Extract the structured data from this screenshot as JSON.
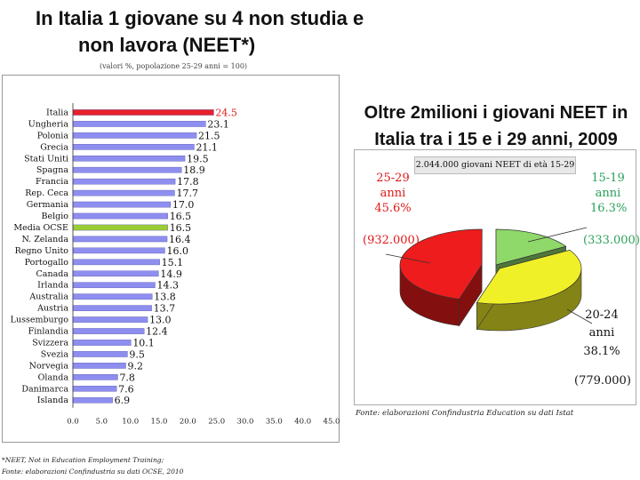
{
  "left_title_line1": "In Italia 1 giovane su 4 non studia e",
  "left_title_line2": "non lavora (NEET*)",
  "left_subtitle": "(valori %, popolazione 25-29 anni = 100)",
  "footnote_1": "*NEET, Not in Education Employment Training;",
  "footnote_2": "Fonte: elaborazioni Confindustria su dati OCSE, 2010",
  "right_title_line1": "Oltre 2milioni i giovani NEET in",
  "right_title_line2": "Italia tra i 15 e i 29 anni, 2009",
  "pie_box_label": "2.044.000 giovani NEET di età 15-29",
  "right_source": "Fonte: elaborazioni Confindustria Education su dati Istat",
  "colors": {
    "bar_default": "#8e8ef0",
    "bar_italy": "#e8202a",
    "bar_oecd": "#9acd32",
    "pie_red": "#ee1c1c",
    "pie_yellow": "#f0f028",
    "pie_green": "#8fd86a"
  },
  "chart_data": [
    {
      "type": "bar",
      "orientation": "horizontal",
      "title": "In Italia 1 giovane su 4 non studia e non lavora (NEET*)",
      "subtitle": "(valori %, popolazione 25-29 anni = 100)",
      "categories": [
        "Italia",
        "Ungheria",
        "Polonia",
        "Grecia",
        "Stati Uniti",
        "Spagna",
        "Francia",
        "Rep. Ceca",
        "Germania",
        "Belgio",
        "Media OCSE",
        "N. Zelanda",
        "Regno Unito",
        "Portogallo",
        "Canada",
        "Irlanda",
        "Australia",
        "Austria",
        "Lussemburgo",
        "Finlandia",
        "Svizzera",
        "Svezia",
        "Norvegia",
        "Olanda",
        "Danimarca",
        "Islanda"
      ],
      "values": [
        24.5,
        23.1,
        21.5,
        21.1,
        19.5,
        18.9,
        17.8,
        17.7,
        17.0,
        16.5,
        16.5,
        16.4,
        16.0,
        15.1,
        14.9,
        14.3,
        13.8,
        13.7,
        13.0,
        12.4,
        10.1,
        9.5,
        9.2,
        7.8,
        7.6,
        6.9
      ],
      "value_labels": [
        "24.5",
        "23.1",
        "21.5",
        "21.1",
        "19.5",
        "18.9",
        "17.8",
        "17.7",
        "17.0",
        "16.5",
        "16.5",
        "16.4",
        "16.0",
        "15.1",
        "14.9",
        "14.3",
        "13.8",
        "13.7",
        "13.0",
        "12.4",
        "10.1",
        "9.5",
        "9.2",
        "7.8",
        "7.6",
        "6.9"
      ],
      "highlight": {
        "Italia": "bar_italy",
        "Media OCSE": "bar_oecd"
      },
      "xlim": [
        0,
        45
      ],
      "xticks": [
        "0.0",
        "5.0",
        "10.0",
        "15.0",
        "20.0",
        "25.0",
        "30.0",
        "35.0",
        "40.0",
        "45.0"
      ],
      "grid": false
    },
    {
      "type": "pie",
      "title": "Oltre 2milioni i giovani NEET in Italia tra i 15 e i 29 anni, 2009",
      "total_label": "2.044.000 giovani NEET di età 15-29",
      "slices": [
        {
          "label": "15-19",
          "label_unit": "anni",
          "percent": 16.3,
          "percent_label": "16.3%",
          "count_label": "(333.000)",
          "color": "pie_green"
        },
        {
          "label": "20-24",
          "label_unit": "anni",
          "percent": 38.1,
          "percent_label": "38.1%",
          "count_label": "(779.000)",
          "color": "pie_yellow"
        },
        {
          "label": "25-29",
          "label_unit": "anni",
          "percent": 45.6,
          "percent_label": "45.6%",
          "count_label": "(932.000)",
          "color": "pie_red"
        }
      ]
    }
  ]
}
